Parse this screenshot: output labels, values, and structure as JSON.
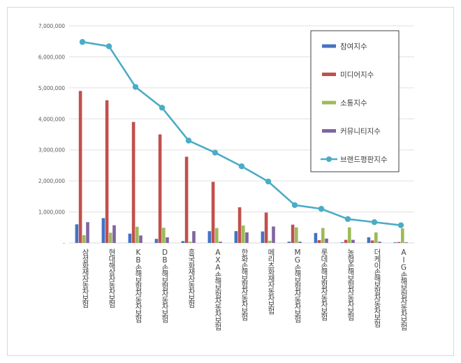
{
  "chart_data": {
    "type": "bar",
    "title": "",
    "xlabel": "",
    "ylabel": "",
    "ylim": [
      0,
      7000000
    ],
    "yticks": [
      0,
      1000000,
      2000000,
      3000000,
      4000000,
      5000000,
      6000000,
      7000000
    ],
    "ytick_labels": [
      "-",
      "1,000,000",
      "2,000,000",
      "3,000,000",
      "4,000,000",
      "5,000,000",
      "6,000,000",
      "7,000,000"
    ],
    "grid": true,
    "legend_position": "top-right",
    "categories": [
      "삼성화재자동차보험",
      "현대해상자동차보험",
      "KB손해보험자동차보험",
      "DB손해보험자동차보험",
      "흥국화재자동차보험",
      "AXA손해보험자동차보험",
      "한화손해보험자동차보험",
      "메리츠화재자동차보험",
      "MG손해보험자동차보험",
      "롯데손해보험자동차보험",
      "농협손해보험자동차보험",
      "더케이손해보험자동차보험",
      "AIG손해보험자동차보험"
    ],
    "series": [
      {
        "name": "참여지수",
        "kind": "bar",
        "color": "#4472c4",
        "values": [
          600000,
          800000,
          300000,
          130000,
          60000,
          380000,
          380000,
          370000,
          40000,
          320000,
          20000,
          180000,
          20000
        ]
      },
      {
        "name": "미디어지수",
        "kind": "bar",
        "color": "#c0504d",
        "values": [
          4900000,
          4600000,
          3900000,
          3500000,
          2780000,
          1970000,
          1150000,
          980000,
          590000,
          90000,
          100000,
          80000,
          30000
        ]
      },
      {
        "name": "소통지수",
        "kind": "bar",
        "color": "#9bbb59",
        "values": [
          250000,
          330000,
          520000,
          490000,
          40000,
          480000,
          560000,
          70000,
          500000,
          480000,
          500000,
          340000,
          470000
        ]
      },
      {
        "name": "커뮤니티지수",
        "kind": "bar",
        "color": "#8064a2",
        "values": [
          670000,
          570000,
          240000,
          180000,
          380000,
          40000,
          340000,
          530000,
          40000,
          140000,
          100000,
          40000,
          20000
        ]
      },
      {
        "name": "브랜드평판지수",
        "kind": "line",
        "color": "#4bacc6",
        "values": [
          6480000,
          6340000,
          5030000,
          4360000,
          3300000,
          2910000,
          2470000,
          1980000,
          1220000,
          1100000,
          770000,
          670000,
          570000
        ]
      }
    ]
  }
}
